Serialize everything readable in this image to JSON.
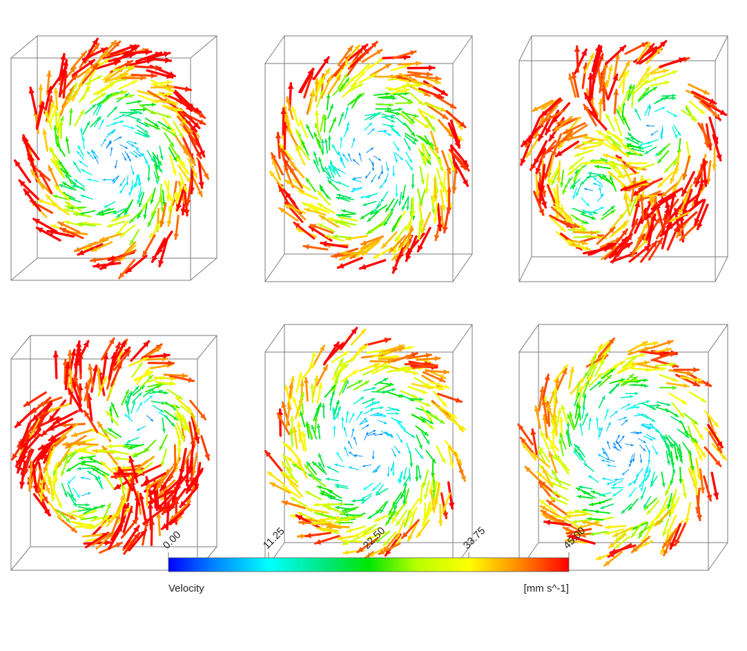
{
  "legend": {
    "variable_label": "Velocity",
    "unit_label": "[mm s^-1]",
    "ticks": [
      "0.00",
      "11.25",
      "22.50",
      "33.75",
      "45.00"
    ],
    "min": 0.0,
    "max": 45.0,
    "colors": [
      "#0000ff",
      "#00bfff",
      "#00ffff",
      "#00e676",
      "#00e600",
      "#c8ff00",
      "#ffff00",
      "#ffb000",
      "#ff5000",
      "#ff0000"
    ]
  },
  "panels": [
    {
      "row": 1,
      "col": 1,
      "pattern": "single-vortex",
      "peak_speed": 45
    },
    {
      "row": 1,
      "col": 2,
      "pattern": "elongated-vortex",
      "peak_speed": 42
    },
    {
      "row": 1,
      "col": 3,
      "pattern": "tilted-vortex-pair",
      "peak_speed": 43
    },
    {
      "row": 2,
      "col": 1,
      "pattern": "diagonal-vortex-pair",
      "peak_speed": 44
    },
    {
      "row": 2,
      "col": 2,
      "pattern": "single-vortex",
      "peak_speed": 38
    },
    {
      "row": 2,
      "col": 3,
      "pattern": "single-vortex",
      "peak_speed": 38
    }
  ]
}
